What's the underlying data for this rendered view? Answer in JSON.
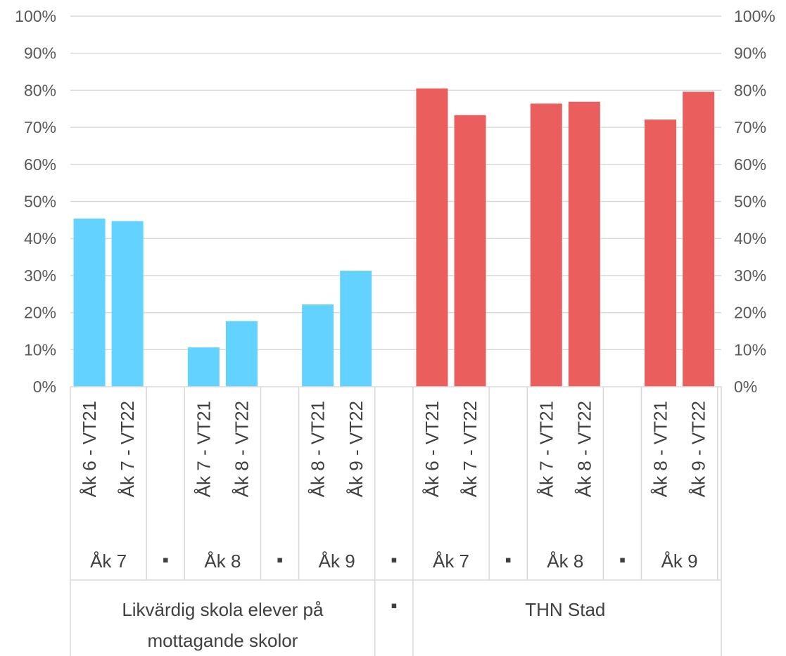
{
  "chart_data": {
    "type": "bar",
    "title": "",
    "xlabel": "",
    "ylabel": "",
    "ylim": [
      0,
      100
    ],
    "y_ticks": [
      "0%",
      "10%",
      "20%",
      "30%",
      "40%",
      "50%",
      "60%",
      "70%",
      "80%",
      "90%",
      "100%"
    ],
    "y_ticks_right": [
      "0%",
      "10%",
      "20%",
      "30%",
      "40%",
      "50%",
      "60%",
      "70%",
      "80%",
      "90%",
      "100%"
    ],
    "grid": true,
    "legend": "none",
    "separator_glyph": "▪",
    "groups": [
      {
        "label": "Likvärdig skola elever på mottagande skolor",
        "label_lines": [
          "Likvärdig skola elever på",
          "mottagande skolor"
        ],
        "color": "#63D2FF",
        "subgroups": [
          {
            "label": "Åk 7",
            "bars": [
              {
                "label": "Åk 6 - VT21",
                "value": 45.4
              },
              {
                "label": "Åk 7 - VT22",
                "value": 44.7
              }
            ]
          },
          {
            "label": "Åk 8",
            "bars": [
              {
                "label": "Åk 7 - VT21",
                "value": 10.6
              },
              {
                "label": "Åk 8 - VT22",
                "value": 17.7
              }
            ]
          },
          {
            "label": "Åk 9",
            "bars": [
              {
                "label": "Åk 8 - VT21",
                "value": 22.2
              },
              {
                "label": "Åk 9 - VT22",
                "value": 31.3
              }
            ]
          }
        ]
      },
      {
        "label": "THN Stad",
        "label_lines": [
          "THN Stad"
        ],
        "color": "#EA5E5E",
        "subgroups": [
          {
            "label": "Åk 7",
            "bars": [
              {
                "label": "Åk 6 - VT21",
                "value": 80.5
              },
              {
                "label": "Åk 7 - VT22",
                "value": 73.3
              }
            ]
          },
          {
            "label": "Åk 8",
            "bars": [
              {
                "label": "Åk 7 - VT21",
                "value": 76.4
              },
              {
                "label": "Åk 8 - VT22",
                "value": 76.9
              }
            ]
          },
          {
            "label": "Åk 9",
            "bars": [
              {
                "label": "Åk 8 - VT21",
                "value": 72.1
              },
              {
                "label": "Åk 9 - VT22",
                "value": 79.6
              }
            ]
          }
        ]
      }
    ]
  }
}
